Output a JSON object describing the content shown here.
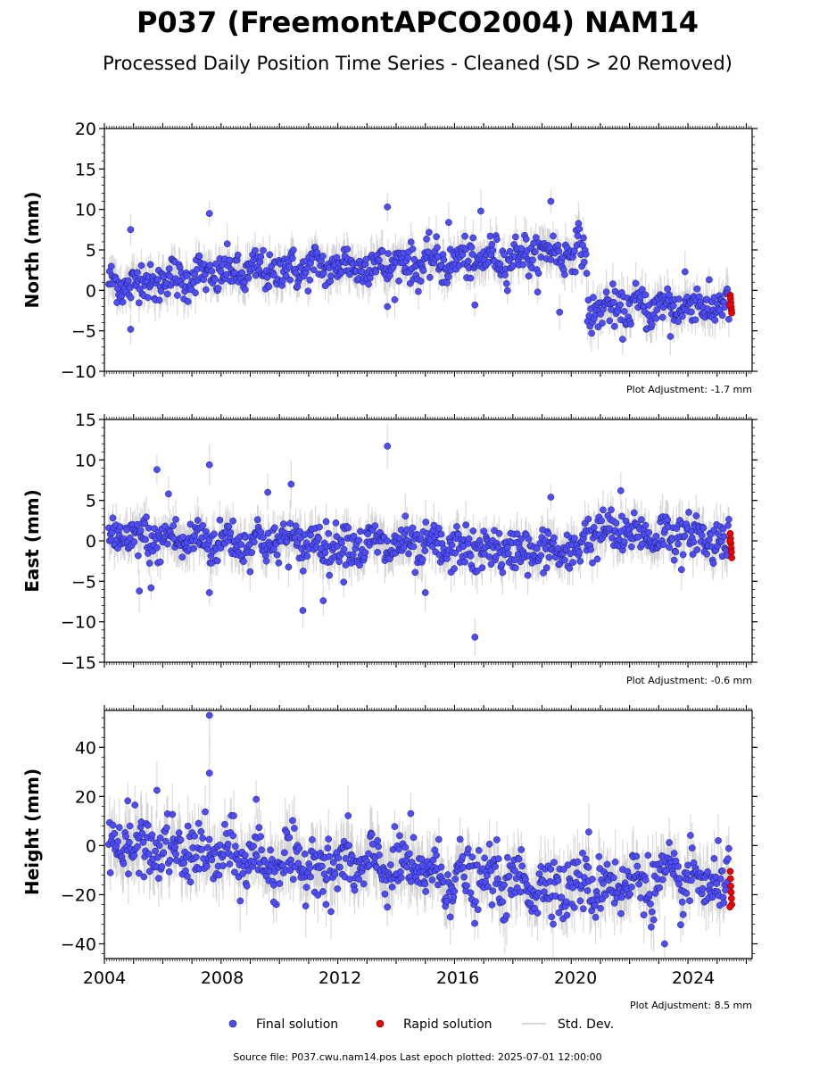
{
  "chart_data": {
    "type": "scatter",
    "title": "P037 (FreemontAPCO2004) NAM14",
    "subtitle": "Processed Daily Position Time Series - Cleaned (SD > 20 Removed)",
    "x_ticks": [
      "2004",
      "2008",
      "2012",
      "2016",
      "2020",
      "2024"
    ],
    "xlim": [
      2004.0,
      2026.2
    ],
    "legend": {
      "placement": "bottom-center",
      "entries": [
        {
          "label": "Final solution",
          "color": "#4d4dff"
        },
        {
          "label": "Rapid solution",
          "color": "#ee0000"
        },
        {
          "label": "Std. Dev.",
          "color": "#cccccc"
        }
      ]
    },
    "footer": "Source file: P037.cwu.nam14.pos  Last epoch plotted: 2025-07-01 12:00:00",
    "colors": {
      "final": "#4d4dff",
      "rapid": "#ee0000",
      "stddev": "#b0b0b0",
      "dot_edge": "#1a1a4d"
    },
    "panels": [
      {
        "ylabel": "North (mm)",
        "ylim": [
          -10,
          20
        ],
        "y_ticks": [
          "20",
          "15",
          "10",
          "5",
          "0",
          "−10"
        ],
        "y_tick_values": [
          20,
          15,
          10,
          5,
          0,
          -10
        ],
        "y_ticks_neg5": "−5",
        "adjustment": "Plot Adjustment: -1.7 mm",
        "trend": [
          [
            2004.0,
            0.5
          ],
          [
            2008.0,
            2.0
          ],
          [
            2012.0,
            3.0
          ],
          [
            2016.0,
            3.5
          ],
          [
            2020.5,
            5.0
          ],
          [
            2020.55,
            -2.5
          ],
          [
            2024.0,
            -1.8
          ],
          [
            2025.5,
            -2.0
          ]
        ],
        "noise": 1.2,
        "outliers": [
          [
            2004.9,
            7.5
          ],
          [
            2004.9,
            -4.8
          ],
          [
            2007.6,
            9.5
          ],
          [
            2013.7,
            10.3
          ],
          [
            2019.3,
            11.0
          ],
          [
            2016.9,
            9.8
          ],
          [
            2013.7,
            -2.0
          ],
          [
            2016.7,
            -1.8
          ],
          [
            2019.6,
            -2.7
          ],
          [
            2023.4,
            -5.7
          ],
          [
            2023.9,
            2.3
          ],
          [
            2015.8,
            8.4
          ]
        ],
        "rapid": [
          [
            2025.45,
            -0.6
          ],
          [
            2025.46,
            -1.0
          ],
          [
            2025.47,
            -1.5
          ],
          [
            2025.48,
            -2.0
          ],
          [
            2025.49,
            -2.4
          ],
          [
            2025.5,
            -2.8
          ],
          [
            2025.44,
            -1.8
          ]
        ]
      },
      {
        "ylabel": "East (mm)",
        "ylim": [
          -15,
          15
        ],
        "y_ticks": [
          "15",
          "10",
          "5",
          "0",
          "−5",
          "−10",
          "−15"
        ],
        "y_tick_values": [
          15,
          10,
          5,
          0,
          -5,
          -10,
          -15
        ],
        "adjustment": "Plot Adjustment: -0.6 mm",
        "trend": [
          [
            2004.0,
            0.3
          ],
          [
            2008.0,
            0.0
          ],
          [
            2012.0,
            -0.3
          ],
          [
            2016.0,
            -1.0
          ],
          [
            2020.3,
            -1.5
          ],
          [
            2020.45,
            1.0
          ],
          [
            2024.0,
            0.6
          ],
          [
            2025.5,
            0.0
          ]
        ],
        "noise": 1.3,
        "outliers": [
          [
            2005.8,
            8.8
          ],
          [
            2007.6,
            9.4
          ],
          [
            2013.7,
            11.7
          ],
          [
            2010.4,
            7.0
          ],
          [
            2006.2,
            5.8
          ],
          [
            2009.6,
            6.0
          ],
          [
            2019.3,
            5.4
          ],
          [
            2021.7,
            6.2
          ],
          [
            2010.8,
            -8.6
          ],
          [
            2011.5,
            -7.4
          ],
          [
            2016.7,
            -11.9
          ],
          [
            2007.6,
            -6.4
          ],
          [
            2005.2,
            -6.2
          ],
          [
            2005.6,
            -5.8
          ],
          [
            2012.2,
            -5.1
          ],
          [
            2015.0,
            -6.4
          ]
        ],
        "rapid": [
          [
            2025.45,
            0.9
          ],
          [
            2025.46,
            0.3
          ],
          [
            2025.47,
            -0.3
          ],
          [
            2025.48,
            -0.9
          ],
          [
            2025.49,
            -1.4
          ],
          [
            2025.5,
            -2.1
          ],
          [
            2025.44,
            0.0
          ]
        ]
      },
      {
        "ylabel": "Height (mm)",
        "ylim": [
          -46,
          55
        ],
        "y_ticks": [
          "40",
          "20",
          "0",
          "−20",
          "−40"
        ],
        "y_tick_values": [
          40,
          20,
          0,
          -20,
          -40
        ],
        "adjustment": "Plot Adjustment: 8.5 mm",
        "trend": [
          [
            2004.0,
            0.0
          ],
          [
            2007.0,
            -3.0
          ],
          [
            2010.0,
            -7.0
          ],
          [
            2014.0,
            -9.0
          ],
          [
            2016.0,
            -13.0
          ],
          [
            2020.0,
            -17.0
          ],
          [
            2023.0,
            -14.0
          ],
          [
            2025.5,
            -16.0
          ]
        ],
        "noise": 6.0,
        "outliers": [
          [
            2007.6,
            53.0
          ],
          [
            2007.6,
            29.5
          ],
          [
            2005.8,
            22.5
          ],
          [
            2009.2,
            18.8
          ],
          [
            2004.8,
            18.2
          ],
          [
            2023.2,
            -40.0
          ],
          [
            2009.8,
            -23.0
          ],
          [
            2011.6,
            -24.0
          ],
          [
            2020.6,
            5.5
          ],
          [
            2014.5,
            13.0
          ]
        ],
        "rapid": [
          [
            2025.45,
            -10.5
          ],
          [
            2025.46,
            -13.5
          ],
          [
            2025.47,
            -16.5
          ],
          [
            2025.48,
            -19.0
          ],
          [
            2025.49,
            -21.5
          ],
          [
            2025.5,
            -24.0
          ],
          [
            2025.44,
            -25.0
          ]
        ]
      }
    ]
  }
}
